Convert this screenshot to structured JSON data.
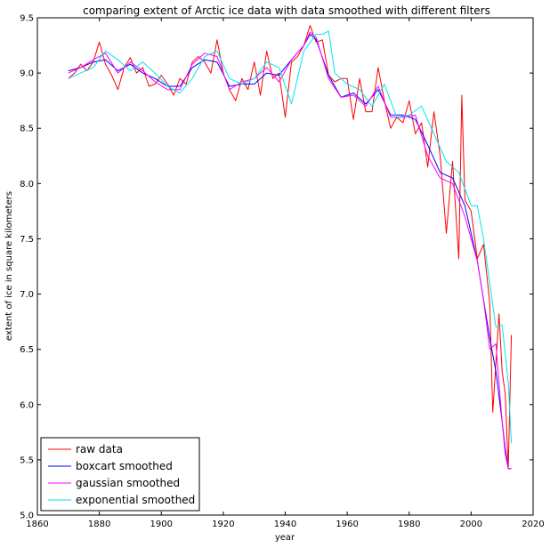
{
  "chart_data": {
    "type": "line",
    "title": "comparing extent of Arctic ice data with data smoothed with different filters",
    "xlabel": "year",
    "ylabel": "extent of ice in square kilometers",
    "xlim": [
      1860,
      2020
    ],
    "ylim": [
      5.0,
      9.5
    ],
    "xticks": [
      1860,
      1880,
      1900,
      1920,
      1940,
      1960,
      1980,
      2000,
      2020
    ],
    "yticks": [
      5.0,
      5.5,
      6.0,
      6.5,
      7.0,
      7.5,
      8.0,
      8.5,
      9.0,
      9.5
    ],
    "xtick_labels": [
      "1860",
      "1880",
      "1900",
      "1920",
      "1940",
      "1960",
      "1980",
      "2000",
      "2020"
    ],
    "ytick_labels": [
      "5.0",
      "5.5",
      "6.0",
      "6.5",
      "7.0",
      "7.5",
      "8.0",
      "8.5",
      "9.0",
      "9.5"
    ],
    "legend_position": "lower-left",
    "grid": false,
    "series": [
      {
        "name": "raw data",
        "color": "#ff0000",
        "points": [
          [
            1870,
            8.95
          ],
          [
            1872,
            9.0
          ],
          [
            1874,
            9.08
          ],
          [
            1876,
            9.02
          ],
          [
            1878,
            9.1
          ],
          [
            1880,
            9.28
          ],
          [
            1882,
            9.08
          ],
          [
            1884,
            8.98
          ],
          [
            1886,
            8.85
          ],
          [
            1888,
            9.05
          ],
          [
            1890,
            9.14
          ],
          [
            1892,
            9.0
          ],
          [
            1894,
            9.05
          ],
          [
            1896,
            8.88
          ],
          [
            1898,
            8.9
          ],
          [
            1900,
            8.98
          ],
          [
            1902,
            8.9
          ],
          [
            1904,
            8.8
          ],
          [
            1906,
            8.95
          ],
          [
            1908,
            8.9
          ],
          [
            1910,
            9.1
          ],
          [
            1912,
            9.15
          ],
          [
            1914,
            9.1
          ],
          [
            1916,
            9.0
          ],
          [
            1918,
            9.3
          ],
          [
            1920,
            9.0
          ],
          [
            1922,
            8.85
          ],
          [
            1924,
            8.75
          ],
          [
            1926,
            8.95
          ],
          [
            1928,
            8.85
          ],
          [
            1930,
            9.1
          ],
          [
            1932,
            8.8
          ],
          [
            1934,
            9.2
          ],
          [
            1936,
            8.95
          ],
          [
            1938,
            9.0
          ],
          [
            1940,
            8.6
          ],
          [
            1942,
            9.1
          ],
          [
            1944,
            9.15
          ],
          [
            1946,
            9.25
          ],
          [
            1948,
            9.43
          ],
          [
            1950,
            9.28
          ],
          [
            1952,
            9.3
          ],
          [
            1954,
            8.98
          ],
          [
            1956,
            8.92
          ],
          [
            1958,
            8.95
          ],
          [
            1960,
            8.95
          ],
          [
            1962,
            8.58
          ],
          [
            1964,
            8.95
          ],
          [
            1966,
            8.65
          ],
          [
            1968,
            8.65
          ],
          [
            1970,
            9.05
          ],
          [
            1972,
            8.75
          ],
          [
            1974,
            8.5
          ],
          [
            1976,
            8.6
          ],
          [
            1978,
            8.55
          ],
          [
            1980,
            8.75
          ],
          [
            1982,
            8.45
          ],
          [
            1984,
            8.55
          ],
          [
            1986,
            8.15
          ],
          [
            1988,
            8.65
          ],
          [
            1990,
            8.25
          ],
          [
            1992,
            7.55
          ],
          [
            1994,
            8.2
          ],
          [
            1996,
            7.32
          ],
          [
            1997,
            8.8
          ],
          [
            1998,
            7.85
          ],
          [
            2000,
            7.75
          ],
          [
            2002,
            7.32
          ],
          [
            2004,
            7.45
          ],
          [
            2006,
            6.92
          ],
          [
            2007,
            5.93
          ],
          [
            2009,
            6.82
          ],
          [
            2010,
            6.3
          ],
          [
            2011,
            6.1
          ],
          [
            2012,
            5.42
          ],
          [
            2013,
            6.63
          ]
        ]
      },
      {
        "name": "boxcart smoothed",
        "color": "#0000ff",
        "points": [
          [
            1870,
            9.02
          ],
          [
            1874,
            9.05
          ],
          [
            1878,
            9.1
          ],
          [
            1882,
            9.12
          ],
          [
            1886,
            9.02
          ],
          [
            1890,
            9.08
          ],
          [
            1894,
            9.0
          ],
          [
            1898,
            8.95
          ],
          [
            1902,
            8.88
          ],
          [
            1906,
            8.88
          ],
          [
            1910,
            9.05
          ],
          [
            1914,
            9.12
          ],
          [
            1918,
            9.1
          ],
          [
            1922,
            8.88
          ],
          [
            1926,
            8.9
          ],
          [
            1930,
            8.9
          ],
          [
            1934,
            9.0
          ],
          [
            1938,
            8.98
          ],
          [
            1942,
            9.12
          ],
          [
            1946,
            9.25
          ],
          [
            1948,
            9.35
          ],
          [
            1950,
            9.3
          ],
          [
            1954,
            8.98
          ],
          [
            1958,
            8.78
          ],
          [
            1962,
            8.82
          ],
          [
            1966,
            8.72
          ],
          [
            1970,
            8.85
          ],
          [
            1974,
            8.62
          ],
          [
            1978,
            8.62
          ],
          [
            1982,
            8.58
          ],
          [
            1986,
            8.35
          ],
          [
            1990,
            8.1
          ],
          [
            1994,
            8.05
          ],
          [
            1998,
            7.8
          ],
          [
            2002,
            7.3
          ],
          [
            2004,
            6.95
          ],
          [
            2006,
            6.6
          ],
          [
            2008,
            6.3
          ],
          [
            2010,
            5.85
          ],
          [
            2011,
            5.6
          ],
          [
            2012,
            5.42
          ],
          [
            2013,
            5.42
          ]
        ]
      },
      {
        "name": "gaussian smoothed",
        "color": "#ff00ff",
        "points": [
          [
            1870,
            9.0
          ],
          [
            1874,
            9.05
          ],
          [
            1878,
            9.12
          ],
          [
            1882,
            9.18
          ],
          [
            1886,
            9.0
          ],
          [
            1890,
            9.1
          ],
          [
            1894,
            9.02
          ],
          [
            1898,
            8.92
          ],
          [
            1902,
            8.85
          ],
          [
            1906,
            8.85
          ],
          [
            1910,
            9.08
          ],
          [
            1914,
            9.18
          ],
          [
            1918,
            9.15
          ],
          [
            1922,
            8.85
          ],
          [
            1926,
            8.92
          ],
          [
            1930,
            8.95
          ],
          [
            1934,
            9.05
          ],
          [
            1938,
            8.92
          ],
          [
            1942,
            9.12
          ],
          [
            1946,
            9.25
          ],
          [
            1948,
            9.37
          ],
          [
            1950,
            9.32
          ],
          [
            1954,
            8.95
          ],
          [
            1958,
            8.78
          ],
          [
            1962,
            8.8
          ],
          [
            1966,
            8.7
          ],
          [
            1970,
            8.88
          ],
          [
            1974,
            8.6
          ],
          [
            1978,
            8.6
          ],
          [
            1982,
            8.62
          ],
          [
            1986,
            8.25
          ],
          [
            1990,
            8.05
          ],
          [
            1994,
            8.0
          ],
          [
            1998,
            7.7
          ],
          [
            2002,
            7.3
          ],
          [
            2004,
            6.95
          ],
          [
            2006,
            6.5
          ],
          [
            2008,
            6.55
          ],
          [
            2010,
            5.85
          ],
          [
            2011,
            5.55
          ],
          [
            2012,
            5.42
          ],
          [
            2013,
            5.42
          ]
        ]
      },
      {
        "name": "exponential smoothed",
        "color": "#00e5ee",
        "points": [
          [
            1870,
            8.95
          ],
          [
            1874,
            9.0
          ],
          [
            1878,
            9.05
          ],
          [
            1882,
            9.2
          ],
          [
            1886,
            9.12
          ],
          [
            1890,
            9.02
          ],
          [
            1894,
            9.1
          ],
          [
            1898,
            9.0
          ],
          [
            1902,
            8.88
          ],
          [
            1906,
            8.82
          ],
          [
            1910,
            8.95
          ],
          [
            1914,
            9.15
          ],
          [
            1918,
            9.2
          ],
          [
            1922,
            8.95
          ],
          [
            1926,
            8.9
          ],
          [
            1930,
            8.95
          ],
          [
            1934,
            9.1
          ],
          [
            1938,
            9.05
          ],
          [
            1942,
            8.72
          ],
          [
            1946,
            9.2
          ],
          [
            1950,
            9.35
          ],
          [
            1952,
            9.35
          ],
          [
            1954,
            9.38
          ],
          [
            1956,
            9.0
          ],
          [
            1960,
            8.9
          ],
          [
            1964,
            8.85
          ],
          [
            1968,
            8.7
          ],
          [
            1972,
            8.9
          ],
          [
            1976,
            8.6
          ],
          [
            1980,
            8.62
          ],
          [
            1984,
            8.7
          ],
          [
            1988,
            8.45
          ],
          [
            1992,
            8.2
          ],
          [
            1996,
            8.1
          ],
          [
            2000,
            7.8
          ],
          [
            2002,
            7.8
          ],
          [
            2004,
            7.5
          ],
          [
            2006,
            7.1
          ],
          [
            2008,
            6.7
          ],
          [
            2010,
            6.72
          ],
          [
            2012,
            6.2
          ],
          [
            2013,
            5.65
          ]
        ]
      }
    ]
  }
}
